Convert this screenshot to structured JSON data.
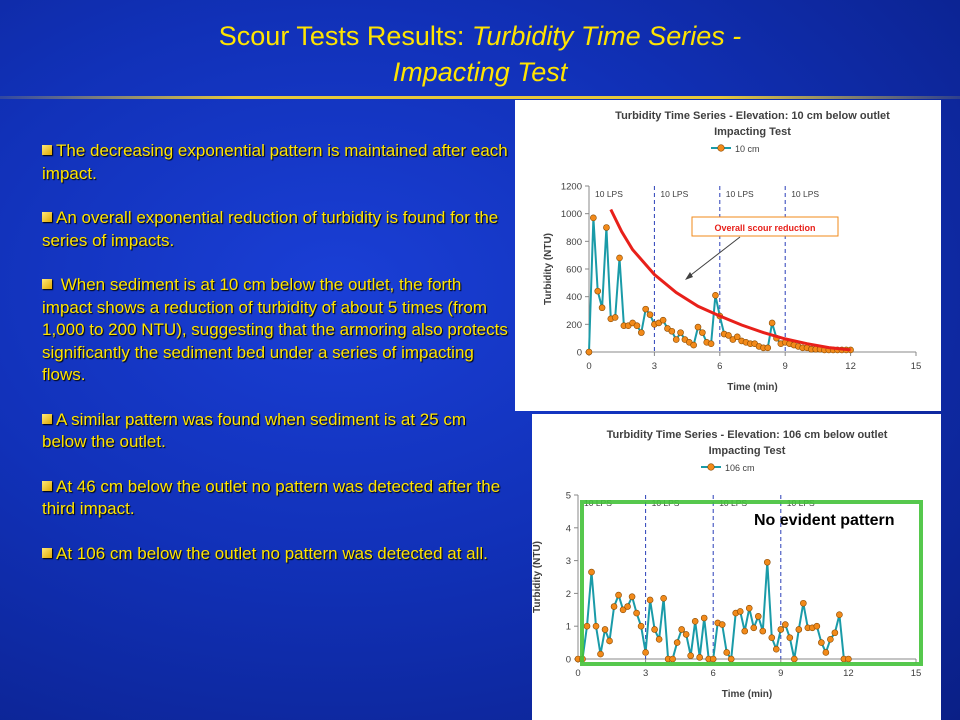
{
  "slide": {
    "title_main": "Scour Tests Results: ",
    "title_italic_1": "Turbidity Time Series -",
    "title_italic_2": "Impacting Test",
    "bullets": [
      "The decreasing exponential pattern is maintained after each impact.",
      "An overall exponential reduction of turbidity is found for the series of impacts.",
      " When sediment is at 10 cm below the outlet, the forth impact shows a reduction of turbidity of about 5 times (from 1,000 to 200 NTU), suggesting that the armoring also protects significantly the sediment bed under a series of impacting flows.",
      "A similar pattern was found when sediment is at 25 cm below the outlet.",
      "At 46 cm below the outlet  no pattern was detected after the third impact.",
      "At 106 cm below the outlet no pattern was detected at all."
    ],
    "colors": {
      "background": "#1131b8",
      "text": "#ffe400",
      "series_marker": "#f28a1a",
      "series_line": "#1a9ba8",
      "trend": "#e8201a",
      "highlight_box": "#44c23a"
    }
  },
  "chart_data": [
    {
      "type": "line",
      "title": "Turbidity Time Series  - Elevation: 10 cm below outlet",
      "subtitle": "Impacting Test",
      "legend": "10 cm",
      "legend_position": "top-center",
      "xlabel": "Time (min)",
      "ylabel": "Turbidity (NTU)",
      "xlim": [
        0,
        15
      ],
      "ylim": [
        0,
        1200
      ],
      "xticks": [
        0,
        3,
        6,
        9,
        12,
        15
      ],
      "yticks": [
        0,
        200,
        400,
        600,
        800,
        1000,
        1200
      ],
      "grid": false,
      "impact_lines_x": [
        3,
        6,
        9
      ],
      "impact_labels": [
        "10 LPS",
        "10 LPS",
        "10 LPS",
        "10 LPS"
      ],
      "annotation": "Overall scour reduction",
      "trend_curve": [
        [
          1.0,
          1030
        ],
        [
          1.5,
          870
        ],
        [
          2,
          740
        ],
        [
          3,
          560
        ],
        [
          4,
          430
        ],
        [
          5,
          330
        ],
        [
          6,
          260
        ],
        [
          7,
          195
        ],
        [
          8,
          140
        ],
        [
          9,
          95
        ],
        [
          10,
          60
        ],
        [
          11,
          32
        ],
        [
          12,
          15
        ]
      ],
      "series": [
        {
          "name": "10 cm",
          "x": [
            0,
            0.2,
            0.4,
            0.6,
            0.8,
            1.0,
            1.2,
            1.4,
            1.6,
            1.8,
            2.0,
            2.2,
            2.4,
            2.6,
            2.8,
            3.0,
            3.2,
            3.4,
            3.6,
            3.8,
            4.0,
            4.2,
            4.4,
            4.6,
            4.8,
            5.0,
            5.2,
            5.4,
            5.6,
            5.8,
            6.0,
            6.2,
            6.4,
            6.6,
            6.8,
            7.0,
            7.2,
            7.4,
            7.6,
            7.8,
            8.0,
            8.2,
            8.4,
            8.6,
            8.8,
            9.0,
            9.2,
            9.4,
            9.6,
            9.8,
            10.0,
            10.2,
            10.4,
            10.6,
            10.8,
            11.0,
            11.2,
            11.4,
            11.6,
            11.8,
            12.0
          ],
          "y": [
            0,
            970,
            440,
            320,
            900,
            240,
            250,
            680,
            190,
            190,
            210,
            190,
            140,
            310,
            270,
            200,
            210,
            230,
            170,
            150,
            90,
            140,
            90,
            70,
            50,
            180,
            140,
            70,
            60,
            410,
            260,
            130,
            120,
            90,
            110,
            80,
            70,
            60,
            60,
            40,
            30,
            30,
            210,
            100,
            60,
            70,
            60,
            50,
            40,
            30,
            30,
            20,
            20,
            20,
            15,
            15,
            15,
            15,
            15,
            15,
            15
          ]
        }
      ]
    },
    {
      "type": "line",
      "title": "Turbidity Time Series  - Elevation: 106 cm below outlet",
      "subtitle": "Impacting Test",
      "legend": "106 cm",
      "legend_position": "top-center",
      "xlabel": "Time (min)",
      "ylabel": "Turbidity (NTU)",
      "xlim": [
        0,
        15
      ],
      "ylim": [
        0,
        5
      ],
      "xticks": [
        0,
        3,
        6,
        9,
        12,
        15
      ],
      "yticks": [
        0,
        1,
        2,
        3,
        4,
        5
      ],
      "grid": false,
      "impact_lines_x": [
        3,
        6,
        9
      ],
      "impact_labels": [
        "10 LPS",
        "10 LPS",
        "10 LPS",
        "10 LPS"
      ],
      "annotation": "No evident pattern",
      "series": [
        {
          "name": "106 cm",
          "x": [
            0,
            0.2,
            0.4,
            0.6,
            0.8,
            1.0,
            1.2,
            1.4,
            1.6,
            1.8,
            2.0,
            2.2,
            2.4,
            2.6,
            2.8,
            3.0,
            3.2,
            3.4,
            3.6,
            3.8,
            4.0,
            4.2,
            4.4,
            4.6,
            4.8,
            5.0,
            5.2,
            5.4,
            5.6,
            5.8,
            6.0,
            6.2,
            6.4,
            6.6,
            6.8,
            7.0,
            7.2,
            7.4,
            7.6,
            7.8,
            8.0,
            8.2,
            8.4,
            8.6,
            8.8,
            9.0,
            9.2,
            9.4,
            9.6,
            9.8,
            10.0,
            10.2,
            10.4,
            10.6,
            10.8,
            11.0,
            11.2,
            11.4,
            11.6,
            11.8,
            12.0
          ],
          "y": [
            0,
            0,
            1.0,
            2.65,
            1.0,
            0.15,
            0.9,
            0.55,
            1.6,
            1.95,
            1.5,
            1.6,
            1.9,
            1.4,
            1.0,
            0.2,
            1.8,
            0.9,
            0.6,
            1.85,
            0,
            0,
            0.5,
            0.9,
            0.75,
            0.1,
            1.15,
            0.05,
            1.25,
            0,
            0,
            1.1,
            1.05,
            0.2,
            0,
            1.4,
            1.45,
            0.85,
            1.55,
            0.95,
            1.3,
            0.85,
            2.95,
            0.65,
            0.3,
            0.9,
            1.05,
            0.65,
            0,
            0.9,
            1.7,
            0.95,
            0.95,
            1.0,
            0.5,
            0.2,
            0.6,
            0.8,
            1.35,
            0,
            0
          ]
        }
      ]
    }
  ]
}
